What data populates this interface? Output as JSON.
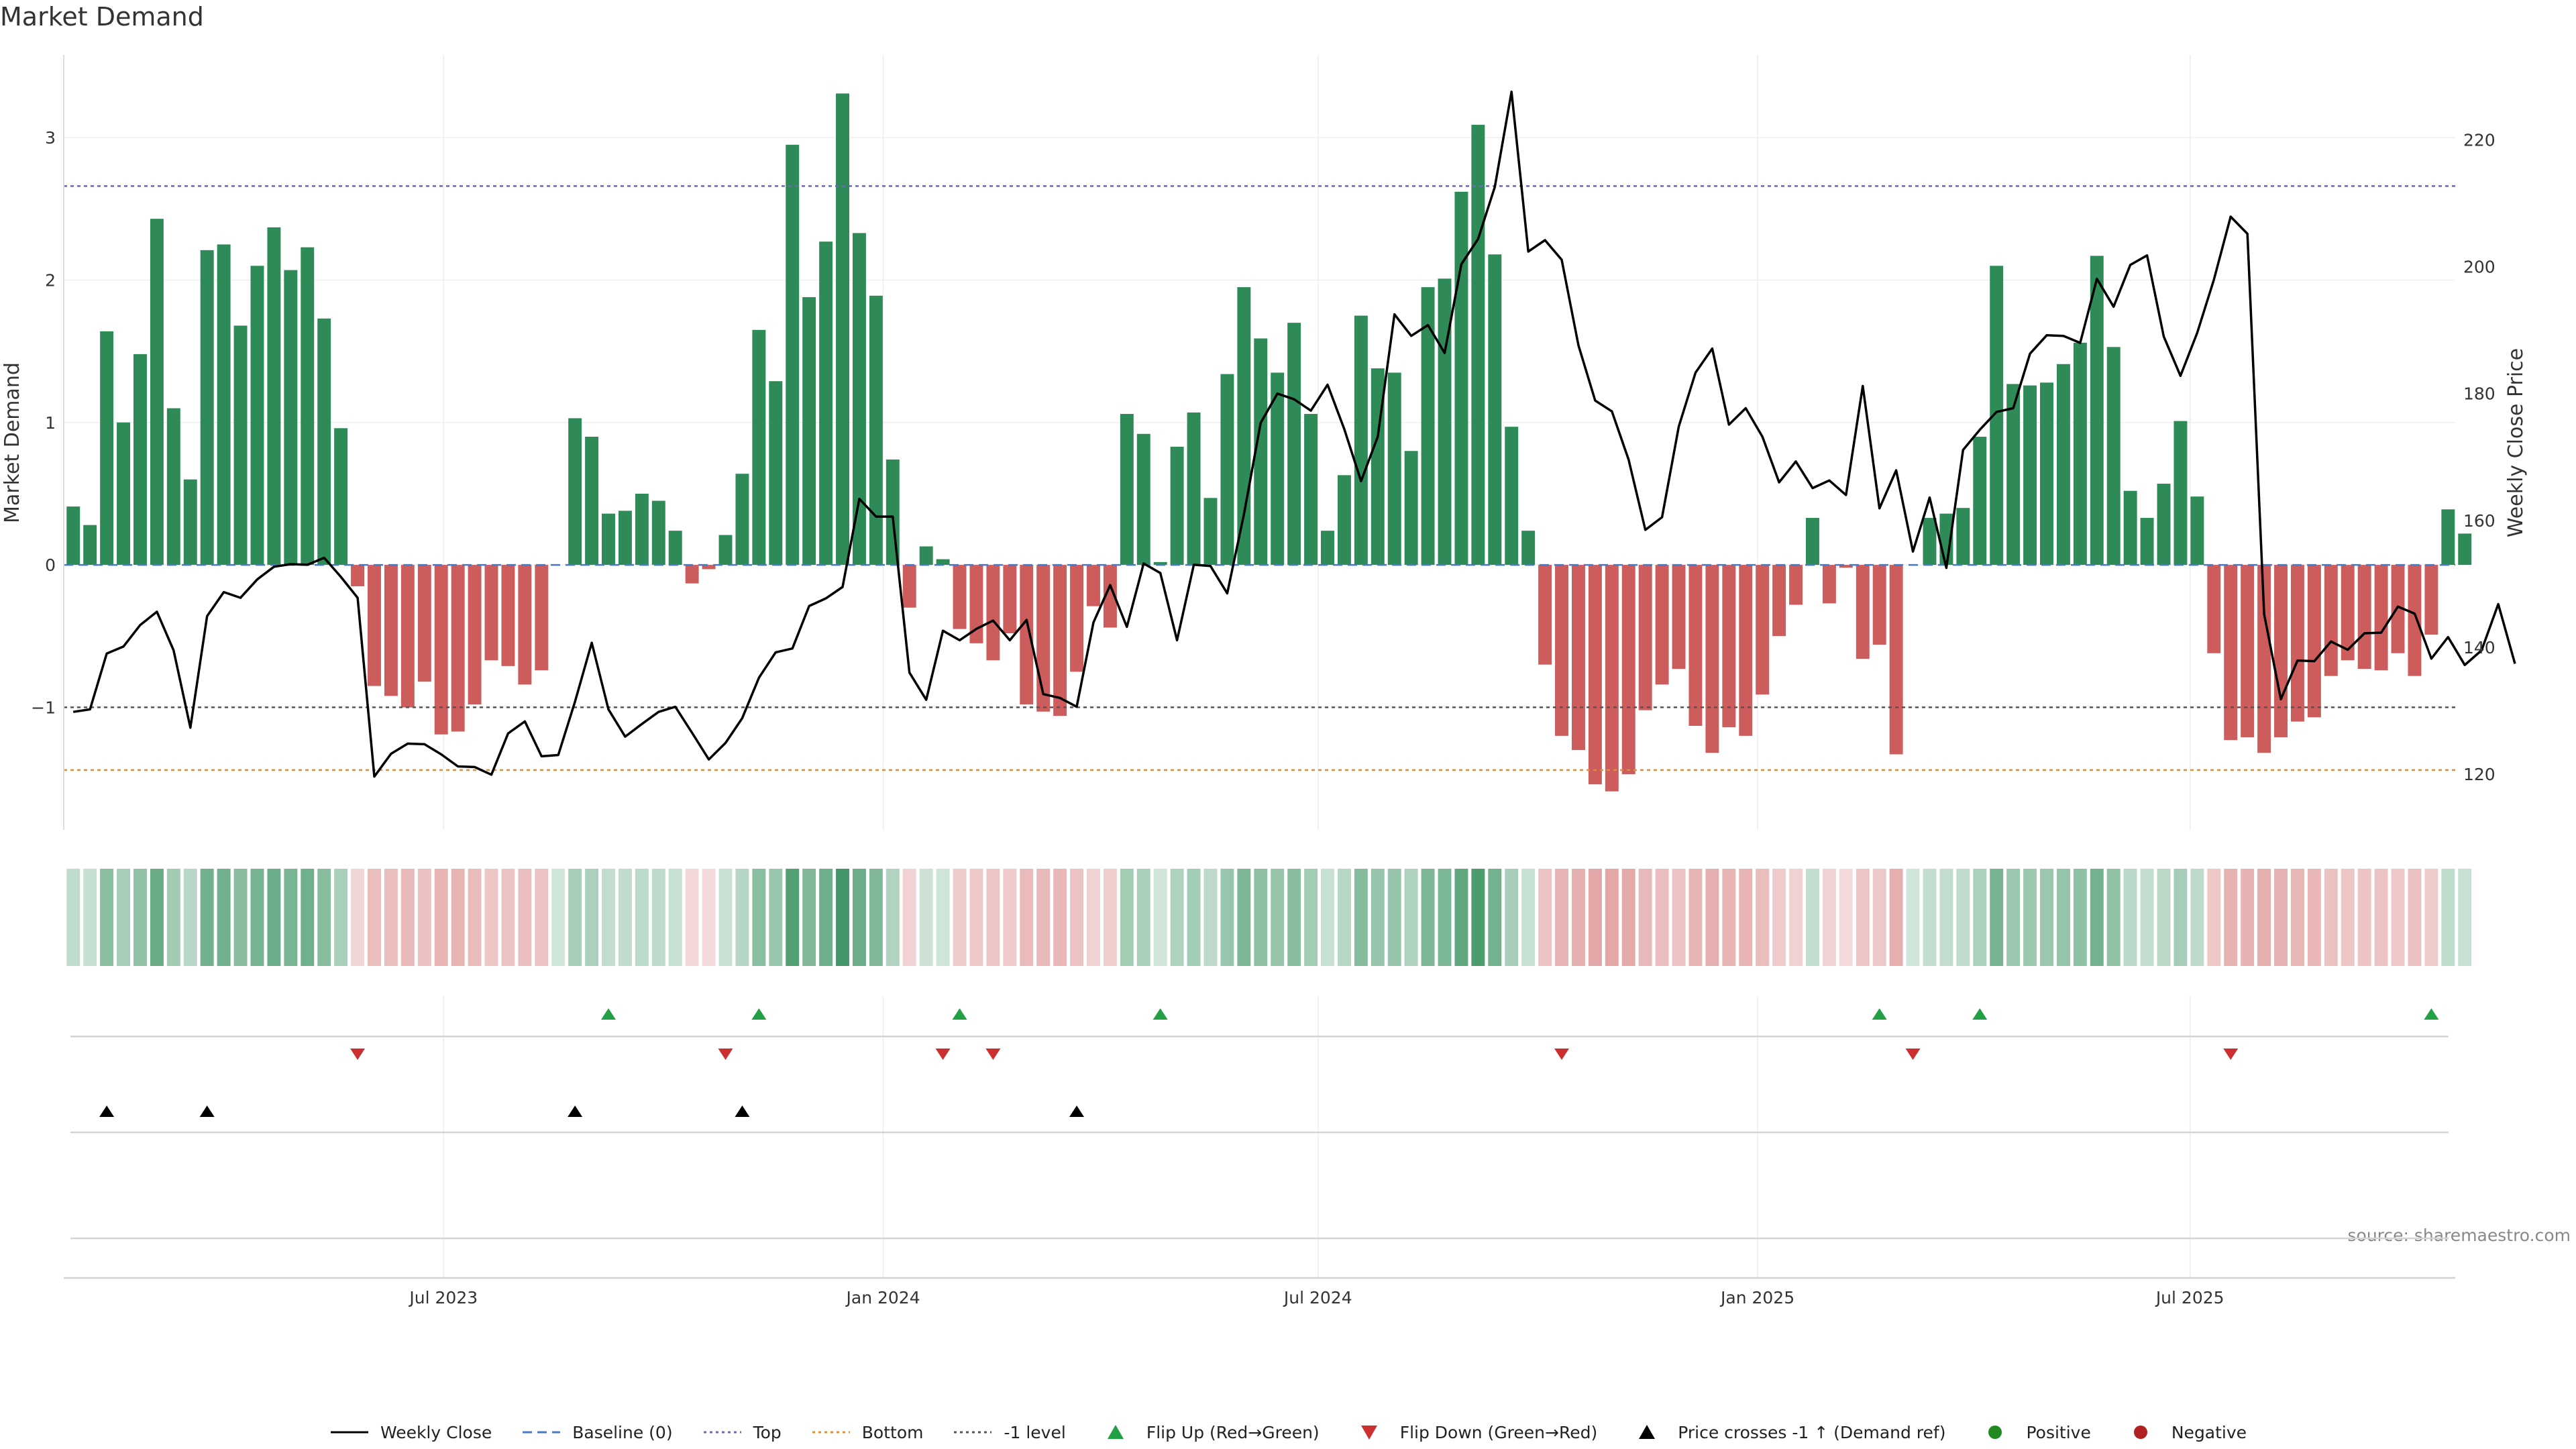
{
  "title": "Market Demand",
  "source": "source: sharemaestro.com",
  "colors": {
    "positive": "#2e8b57",
    "negative": "#cd5c5c",
    "price_line": "#000000",
    "baseline": "#4a78c8",
    "top": "#6b68b8",
    "bottom": "#e0902e",
    "minus_one": "#555555",
    "flip_up": "#22a045",
    "flip_down": "#cc2f2f",
    "cross": "#000000",
    "positive_dot": "#208a20",
    "negative_dot": "#b22222"
  },
  "chart_data": {
    "type": "bar",
    "title": "Market Demand",
    "ylabel": "Market Demand",
    "ylabel_right": "Weekly Close Price",
    "ylim": [
      -1.86,
      3.58
    ],
    "ylim_right": [
      111.2,
      233.4
    ],
    "yticks": [
      -1,
      0,
      1,
      2,
      3
    ],
    "yticks_right": [
      120,
      140,
      160,
      180,
      200,
      220
    ],
    "xlim": [
      "2023-01-23",
      "2025-10-20"
    ],
    "xticks": [
      {
        "date": "2023-07-01",
        "label": "Jul 2023"
      },
      {
        "date": "2024-01-01",
        "label": "Jan 2024"
      },
      {
        "date": "2024-07-01",
        "label": "Jul 2024"
      },
      {
        "date": "2025-01-01",
        "label": "Jan 2025"
      },
      {
        "date": "2025-07-01",
        "label": "Jul 2025"
      }
    ],
    "start_week": "2023-01-27",
    "levels": {
      "top": 2.66,
      "bottom": -1.44,
      "minus_one": -1.0,
      "baseline": 0
    },
    "demand": [
      0.41,
      0.28,
      1.64,
      1.0,
      1.48,
      2.43,
      1.1,
      0.6,
      2.21,
      2.25,
      1.68,
      2.1,
      2.37,
      2.07,
      2.23,
      1.73,
      0.96,
      -0.15,
      -0.85,
      -0.92,
      -1.0,
      -0.82,
      -1.19,
      -1.17,
      -0.98,
      -0.67,
      -0.71,
      -0.84,
      -0.74,
      0,
      1.03,
      0.9,
      0.36,
      0.38,
      0.5,
      0.45,
      0.24,
      -0.13,
      -0.03,
      0.21,
      0.64,
      1.65,
      1.29,
      2.95,
      1.88,
      2.27,
      3.31,
      2.33,
      1.89,
      0.74,
      -0.3,
      0.13,
      0.04,
      -0.45,
      -0.55,
      -0.67,
      -0.48,
      -0.98,
      -1.03,
      -1.06,
      -0.75,
      -0.29,
      -0.44,
      1.06,
      0.92,
      0.02,
      0.83,
      1.07,
      0.47,
      1.34,
      1.95,
      1.59,
      1.35,
      1.7,
      1.06,
      0.24,
      0.63,
      1.75,
      1.38,
      1.35,
      0.8,
      1.95,
      2.01,
      2.62,
      3.09,
      2.18,
      0.97,
      0.24,
      -0.7,
      -1.2,
      -1.3,
      -1.54,
      -1.59,
      -1.47,
      -1.02,
      -0.84,
      -0.73,
      -1.13,
      -1.32,
      -1.14,
      -1.2,
      -0.91,
      -0.5,
      -0.28,
      0.33,
      -0.27,
      -0.02,
      -0.66,
      -0.56,
      -1.33,
      0,
      0.33,
      0.36,
      0.4,
      0.9,
      2.1,
      1.27,
      1.26,
      1.28,
      1.41,
      1.56,
      2.17,
      1.53,
      0.52,
      0.33,
      0.57,
      1.01,
      0.48,
      -0.62,
      -1.23,
      -1.21,
      -1.32,
      -1.21,
      -1.1,
      -1.07,
      -0.78,
      -0.67,
      -0.73,
      -0.74,
      -0.62,
      -0.78,
      -0.49,
      0.39,
      0.22
    ],
    "close": [
      129.8,
      130.2,
      139.0,
      140.1,
      143.5,
      145.6,
      139.5,
      127.3,
      144.9,
      148.7,
      147.8,
      150.7,
      152.7,
      153.1,
      153.0,
      154.1,
      151.1,
      147.8,
      119.6,
      123.2,
      124.8,
      124.7,
      123.1,
      121.2,
      121.1,
      119.9,
      126.4,
      128.3,
      122.8,
      123.0,
      131.4,
      140.7,
      130.2,
      125.9,
      127.9,
      129.8,
      130.6,
      126.5,
      122.3,
      124.9,
      128.8,
      135.2,
      139.2,
      139.8,
      146.5,
      147.7,
      149.5,
      163.4,
      160.6,
      160.6,
      136.0,
      131.7,
      142.6,
      141.1,
      142.9,
      144.2,
      141.1,
      144.3,
      132.6,
      132.0,
      130.6,
      143.9,
      149.8,
      143.2,
      153.2,
      151.7,
      141.1,
      153.0,
      152.8,
      148.5,
      161.0,
      175.4,
      180.0,
      179.1,
      177.3,
      181.4,
      174.4,
      166.2,
      173.2,
      192.5,
      189.1,
      190.8,
      186.4,
      200.4,
      204.4,
      212.6,
      227.6,
      202.4,
      204.2,
      201.1,
      187.6,
      178.9,
      177.2,
      169.6,
      158.5,
      160.5,
      174.8,
      183.3,
      187.1,
      175.1,
      177.7,
      173.2,
      166.0,
      169.3,
      165.1,
      166.3,
      164.0,
      181.2,
      161.9,
      167.9,
      155.1,
      163.6,
      152.5,
      171.1,
      174.3,
      177.1,
      177.7,
      186.3,
      189.2,
      189.1,
      188.0,
      198.1,
      193.7,
      200.3,
      201.8,
      189.0,
      182.8,
      189.6,
      198.0,
      207.9,
      205.2,
      145.2,
      131.8,
      137.9,
      137.8,
      140.9,
      139.6,
      142.2,
      142.3,
      146.4,
      145.3,
      138.2,
      141.6,
      137.2,
      139.5,
      146.8,
      137.4
    ],
    "flip_up": [
      "2023-09-08",
      "2023-11-10",
      "2024-02-02",
      "2024-04-26",
      "2025-02-21",
      "2025-04-04",
      "2025-10-10"
    ],
    "flip_down": [
      "2023-05-26",
      "2023-10-27",
      "2024-01-26",
      "2024-02-16",
      "2024-10-11",
      "2025-03-07",
      "2025-07-18"
    ],
    "price_crosses": [
      "2023-02-10",
      "2023-03-24",
      "2023-08-25",
      "2023-11-03",
      "2024-03-22"
    ],
    "legend": [
      "Weekly Close",
      "Baseline (0)",
      "Top",
      "Bottom",
      "-1 level",
      "Flip Up (Red→Green)",
      "Flip Down (Green→Red)",
      "Price crosses -1 ↑ (Demand ref)",
      "Positive",
      "Negative"
    ]
  }
}
